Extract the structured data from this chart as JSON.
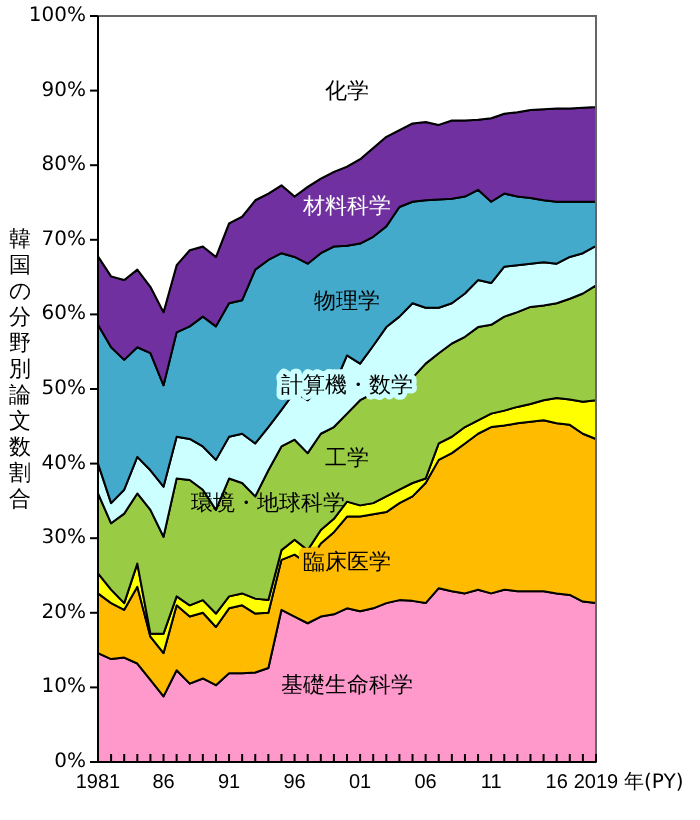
{
  "chart_data": {
    "type": "area",
    "stacked": true,
    "ylabel": "韓国の分野別論文数割合",
    "xlabel": "年(PY)",
    "x": [
      1981,
      1982,
      1983,
      1984,
      1985,
      1986,
      1987,
      1988,
      1989,
      1990,
      1991,
      1992,
      1993,
      1994,
      1995,
      1996,
      1997,
      1998,
      1999,
      2000,
      2001,
      2002,
      2003,
      2004,
      2005,
      2006,
      2007,
      2008,
      2009,
      2010,
      2011,
      2012,
      2013,
      2014,
      2015,
      2016,
      2017,
      2018,
      2019
    ],
    "xlim": [
      1981,
      2019
    ],
    "xticks": [
      {
        "value": 1981,
        "label": "1981"
      },
      {
        "value": 1982,
        "label": null
      },
      {
        "value": 1983,
        "label": null
      },
      {
        "value": 1984,
        "label": null
      },
      {
        "value": 1985,
        "label": null
      },
      {
        "value": 1986,
        "label": "86"
      },
      {
        "value": 1987,
        "label": null
      },
      {
        "value": 1988,
        "label": null
      },
      {
        "value": 1989,
        "label": null
      },
      {
        "value": 1990,
        "label": null
      },
      {
        "value": 1991,
        "label": "91"
      },
      {
        "value": 1992,
        "label": null
      },
      {
        "value": 1993,
        "label": null
      },
      {
        "value": 1994,
        "label": null
      },
      {
        "value": 1995,
        "label": null
      },
      {
        "value": 1996,
        "label": "96"
      },
      {
        "value": 1997,
        "label": null
      },
      {
        "value": 1998,
        "label": null
      },
      {
        "value": 1999,
        "label": null
      },
      {
        "value": 2000,
        "label": null
      },
      {
        "value": 2001,
        "label": "01"
      },
      {
        "value": 2002,
        "label": null
      },
      {
        "value": 2003,
        "label": null
      },
      {
        "value": 2004,
        "label": null
      },
      {
        "value": 2005,
        "label": null
      },
      {
        "value": 2006,
        "label": "06"
      },
      {
        "value": 2007,
        "label": null
      },
      {
        "value": 2008,
        "label": null
      },
      {
        "value": 2009,
        "label": null
      },
      {
        "value": 2010,
        "label": null
      },
      {
        "value": 2011,
        "label": "11"
      },
      {
        "value": 2012,
        "label": null
      },
      {
        "value": 2013,
        "label": null
      },
      {
        "value": 2014,
        "label": null
      },
      {
        "value": 2015,
        "label": null
      },
      {
        "value": 2016,
        "label": "16"
      },
      {
        "value": 2017,
        "label": null
      },
      {
        "value": 2018,
        "label": null
      },
      {
        "value": 2019,
        "label": "2019"
      }
    ],
    "ylim": [
      0,
      100
    ],
    "yticks": [
      {
        "value": 0,
        "label": "0%"
      },
      {
        "value": 10,
        "label": "10%"
      },
      {
        "value": 20,
        "label": "20%"
      },
      {
        "value": 30,
        "label": "30%"
      },
      {
        "value": 40,
        "label": "40%"
      },
      {
        "value": 50,
        "label": "50%"
      },
      {
        "value": 60,
        "label": "60%"
      },
      {
        "value": 70,
        "label": "70%"
      },
      {
        "value": 80,
        "label": "80%"
      },
      {
        "value": 90,
        "label": "90%"
      },
      {
        "value": 100,
        "label": "100%"
      }
    ],
    "series": [
      {
        "name": "基礎生命科学",
        "color": "#ff99cc",
        "values": [
          14.6,
          13.8,
          14.0,
          13.2,
          11.0,
          8.8,
          12.3,
          10.5,
          11.2,
          10.3,
          11.9,
          11.9,
          12.0,
          12.6,
          20.4,
          19.5,
          18.6,
          19.5,
          19.8,
          20.6,
          20.2,
          20.6,
          21.3,
          21.7,
          21.6,
          21.3,
          23.3,
          22.9,
          22.6,
          23.1,
          22.6,
          23.1,
          22.9,
          22.9,
          22.9,
          22.6,
          22.4,
          21.5,
          21.3
        ]
      },
      {
        "name": "臨床医学",
        "color": "#ffbb00",
        "values": [
          8.0,
          7.5,
          6.4,
          10.3,
          5.8,
          5.8,
          8.7,
          9.0,
          8.8,
          7.8,
          8.7,
          9.1,
          7.9,
          7.4,
          6.7,
          8.3,
          8.0,
          9.8,
          11.0,
          12.3,
          12.7,
          12.6,
          12.2,
          13.0,
          14.0,
          16.1,
          17.2,
          18.5,
          20.1,
          20.9,
          22.3,
          22.0,
          22.5,
          22.7,
          22.9,
          22.8,
          22.8,
          22.5,
          22.0
        ]
      },
      {
        "name": "環境・地球科学",
        "color": "#ffff00",
        "values": [
          2.7,
          1.8,
          0.9,
          3.1,
          0.4,
          2.6,
          1.2,
          1.5,
          1.7,
          1.8,
          1.6,
          1.6,
          2.0,
          1.7,
          1.3,
          2.0,
          1.8,
          1.8,
          1.8,
          2.0,
          1.5,
          1.5,
          2.1,
          1.8,
          1.8,
          0.6,
          2.2,
          2.2,
          2.2,
          1.8,
          1.8,
          2.0,
          2.2,
          2.4,
          2.7,
          3.4,
          3.4,
          4.3,
          5.2
        ]
      },
      {
        "name": "工学",
        "color": "#99cc44",
        "values": [
          10.7,
          8.9,
          12.0,
          9.4,
          16.6,
          13.0,
          15.8,
          16.8,
          14.8,
          13.9,
          15.8,
          14.8,
          13.7,
          17.4,
          13.9,
          13.4,
          13.0,
          12.9,
          12.3,
          11.8,
          14.1,
          14.7,
          14.3,
          13.8,
          14.1,
          15.4,
          12.1,
          12.5,
          12.1,
          12.5,
          11.9,
          12.6,
          12.7,
          13.0,
          12.7,
          12.7,
          13.5,
          14.5,
          15.4
        ]
      },
      {
        "name": "計算機・数学",
        "color": "#ccffff",
        "values": [
          4.0,
          2.7,
          3.2,
          4.9,
          5.3,
          6.7,
          5.6,
          5.5,
          5.8,
          6.7,
          5.6,
          6.6,
          7.1,
          5.8,
          4.9,
          6.4,
          7.1,
          6.3,
          5.5,
          7.8,
          4.9,
          6.4,
          8.4,
          9.4,
          10.0,
          7.5,
          6.1,
          5.4,
          5.8,
          6.3,
          5.6,
          6.7,
          6.3,
          5.8,
          5.8,
          5.3,
          5.6,
          5.4,
          5.3
        ]
      },
      {
        "name": "物理学",
        "color": "#44aacc",
        "values": [
          18.6,
          20.9,
          17.4,
          14.7,
          15.7,
          13.6,
          14.0,
          15.1,
          17.4,
          17.9,
          17.9,
          17.9,
          23.3,
          22.4,
          21.0,
          18.1,
          18.3,
          17.9,
          18.7,
          14.7,
          16.1,
          14.6,
          13.5,
          14.7,
          13.6,
          14.4,
          14.5,
          14.0,
          13.0,
          12.1,
          10.9,
          9.8,
          9.2,
          8.8,
          8.3,
          8.3,
          7.4,
          6.9,
          5.9
        ]
      },
      {
        "name": "材料科学",
        "color": "#7030a0",
        "values": [
          9.2,
          9.5,
          10.7,
          10.4,
          8.9,
          9.8,
          9.0,
          10.2,
          9.4,
          9.3,
          10.7,
          11.2,
          9.3,
          8.9,
          9.1,
          8.1,
          10.3,
          10.0,
          10.0,
          10.6,
          11.3,
          11.9,
          12.0,
          10.3,
          10.5,
          10.5,
          10.0,
          10.5,
          10.2,
          9.4,
          11.2,
          10.7,
          11.3,
          11.8,
          12.2,
          12.5,
          12.5,
          12.6,
          12.7
        ]
      },
      {
        "name": "化学",
        "color": "#ffffff",
        "values": [
          32.2,
          34.9,
          35.4,
          34.0,
          36.3,
          39.7,
          33.4,
          31.4,
          30.9,
          32.3,
          27.8,
          26.9,
          24.7,
          23.8,
          22.7,
          24.2,
          22.9,
          21.8,
          20.9,
          20.2,
          19.2,
          17.7,
          16.2,
          15.3,
          14.4,
          14.2,
          14.6,
          14.0,
          14.0,
          13.9,
          13.7,
          13.1,
          12.9,
          12.6,
          12.5,
          12.4,
          12.4,
          12.3,
          12.2
        ]
      }
    ]
  }
}
